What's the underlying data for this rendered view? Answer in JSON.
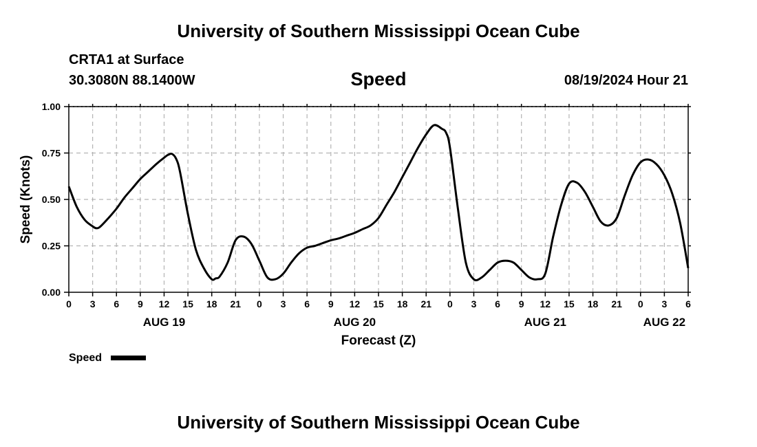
{
  "header": {
    "title": "University of Southern Mississippi Ocean Cube",
    "station": "CRTA1 at Surface",
    "coords": "30.3080N  88.1400W",
    "variable": "Speed",
    "datetime": "08/19/2024 Hour 21"
  },
  "footer": {
    "title": "University of Southern Mississippi Ocean Cube"
  },
  "chart_data": {
    "type": "line",
    "title": "Speed",
    "xlabel": "Forecast (Z)",
    "ylabel": "Speed (Knots)",
    "xlim": [
      0,
      78
    ],
    "ylim": [
      0,
      1.0
    ],
    "y_ticks": [
      0,
      0.25,
      0.5,
      0.75,
      1.0
    ],
    "y_tick_labels": [
      "0.00",
      "0.25",
      "0.50",
      "0.75",
      "1.00"
    ],
    "x_ticks": [
      0,
      3,
      6,
      9,
      12,
      15,
      18,
      21,
      24,
      27,
      30,
      33,
      36,
      39,
      42,
      45,
      48,
      51,
      54,
      57,
      60,
      63,
      66,
      69,
      72,
      75,
      78
    ],
    "x_tick_labels": [
      "0",
      "3",
      "6",
      "9",
      "12",
      "15",
      "18",
      "21",
      "0",
      "3",
      "6",
      "9",
      "12",
      "15",
      "18",
      "21",
      "0",
      "3",
      "6",
      "9",
      "12",
      "15",
      "18",
      "21",
      "0",
      "3",
      "6"
    ],
    "date_labels": [
      {
        "x": 12,
        "text": "AUG 19"
      },
      {
        "x": 36,
        "text": "AUG 20"
      },
      {
        "x": 60,
        "text": "AUG 21"
      },
      {
        "x": 75,
        "text": "AUG 22"
      }
    ],
    "grid": true,
    "legend": {
      "position": "bottom-left",
      "entries": [
        "Speed"
      ]
    },
    "series": [
      {
        "name": "Speed",
        "color": "#000000",
        "x": [
          0,
          1,
          2,
          3,
          3.5,
          4,
          5,
          6,
          7,
          8,
          9,
          10,
          11,
          12,
          12.5,
          13,
          13.5,
          14,
          15,
          16,
          17,
          18,
          18.5,
          19,
          20,
          21,
          22,
          23,
          24,
          25,
          26,
          27,
          28,
          29,
          30,
          31,
          32,
          33,
          34,
          35,
          36,
          37,
          38,
          39,
          40,
          41,
          42,
          43,
          44,
          45,
          46,
          47,
          47.5,
          48,
          49,
          50,
          51,
          52,
          53,
          54,
          55,
          56,
          57,
          58,
          59,
          60,
          61,
          62,
          63,
          64,
          65,
          66,
          67,
          68,
          69,
          70,
          71,
          72,
          73,
          74,
          75,
          76,
          77,
          78
        ],
        "values": [
          0.57,
          0.46,
          0.39,
          0.355,
          0.345,
          0.355,
          0.4,
          0.45,
          0.51,
          0.56,
          0.61,
          0.65,
          0.69,
          0.725,
          0.74,
          0.745,
          0.72,
          0.65,
          0.42,
          0.23,
          0.13,
          0.07,
          0.075,
          0.085,
          0.16,
          0.28,
          0.3,
          0.26,
          0.17,
          0.08,
          0.07,
          0.1,
          0.16,
          0.21,
          0.24,
          0.25,
          0.265,
          0.28,
          0.29,
          0.305,
          0.32,
          0.34,
          0.36,
          0.4,
          0.47,
          0.54,
          0.62,
          0.7,
          0.78,
          0.85,
          0.9,
          0.88,
          0.86,
          0.78,
          0.45,
          0.16,
          0.07,
          0.08,
          0.12,
          0.16,
          0.17,
          0.16,
          0.12,
          0.08,
          0.07,
          0.1,
          0.3,
          0.47,
          0.585,
          0.59,
          0.54,
          0.46,
          0.38,
          0.36,
          0.4,
          0.52,
          0.63,
          0.7,
          0.715,
          0.69,
          0.63,
          0.53,
          0.37,
          0.13
        ]
      }
    ]
  }
}
